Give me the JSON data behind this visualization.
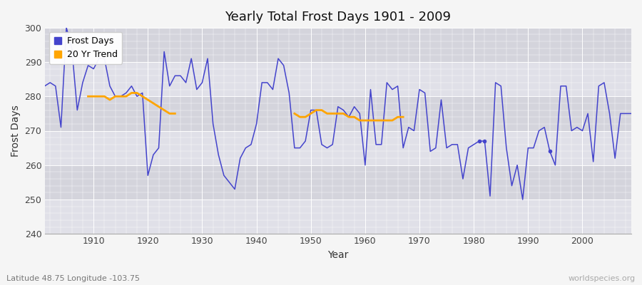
{
  "title": "Yearly Total Frost Days 1901 - 2009",
  "xlabel": "Year",
  "ylabel": "Frost Days",
  "subtitle": "Latitude 48.75 Longitude -103.75",
  "watermark": "worldspecies.org",
  "ylim": [
    240,
    300
  ],
  "xlim": [
    1901,
    2009
  ],
  "yticks": [
    240,
    250,
    260,
    270,
    280,
    290,
    300
  ],
  "xticks": [
    1910,
    1920,
    1930,
    1940,
    1950,
    1960,
    1970,
    1980,
    1990,
    2000
  ],
  "bg_color": "#f0f0f0",
  "band_colors": [
    "#e8e8e8",
    "#d8d8d8"
  ],
  "line_color": "#4444cc",
  "trend_color": "#ffa500",
  "frost_days_years": [
    1901,
    1902,
    1903,
    1904,
    1905,
    1906,
    1907,
    1908,
    1909,
    1910,
    1911,
    1912,
    1913,
    1914,
    1915,
    1916,
    1917,
    1918,
    1919,
    1920,
    1921,
    1922,
    1923,
    1924,
    1925,
    1926,
    1927,
    1928,
    1929,
    1930,
    1931,
    1932,
    1933,
    1934,
    1935,
    1936,
    1937,
    1938,
    1939,
    1940,
    1941,
    1942,
    1943,
    1944,
    1945,
    1946,
    1947,
    1948,
    1949,
    1950,
    1951,
    1952,
    1953,
    1954,
    1955,
    1956,
    1957,
    1958,
    1959,
    1960,
    1961,
    1962,
    1963,
    1964,
    1965,
    1966,
    1967,
    1968,
    1969,
    1970,
    1971,
    1972,
    1973,
    1974,
    1975,
    1976,
    1977,
    1978,
    1979,
    1980,
    1981,
    1982,
    1983,
    1984,
    1985,
    1986,
    1987,
    1988,
    1989,
    1990,
    1991,
    1992,
    1993,
    1994,
    1995,
    1996,
    1997,
    1998,
    1999,
    2000,
    2001,
    2002,
    2003,
    2004,
    2005,
    2006,
    2007,
    2008,
    2009
  ],
  "frost_days_values": [
    283,
    284,
    283,
    271,
    300,
    294,
    276,
    284,
    289,
    288,
    291,
    291,
    283,
    280,
    280,
    281,
    283,
    280,
    281,
    257,
    263,
    265,
    293,
    283,
    286,
    286,
    284,
    291,
    282,
    284,
    291,
    272,
    263,
    257,
    255,
    253,
    262,
    265,
    266,
    272,
    284,
    284,
    282,
    291,
    289,
    281,
    265,
    265,
    267,
    276,
    276,
    266,
    265,
    266,
    277,
    276,
    274,
    277,
    275,
    260,
    282,
    266,
    266,
    284,
    282,
    283,
    265,
    271,
    270,
    282,
    281,
    264,
    265,
    279,
    265,
    266,
    266,
    256,
    265,
    266,
    267,
    267,
    251,
    284,
    283,
    265,
    254,
    260,
    250,
    265,
    265,
    270,
    271,
    264,
    260,
    283,
    283,
    270,
    271,
    270,
    275,
    261,
    283,
    284,
    275,
    262,
    275,
    275,
    275
  ],
  "trend_seg1_years": [
    1909,
    1910,
    1911,
    1912,
    1913,
    1914,
    1915,
    1916,
    1917,
    1918,
    1919,
    1920,
    1921,
    1922,
    1923,
    1924,
    1925
  ],
  "trend_seg1_vals": [
    280,
    280,
    280,
    280,
    279,
    280,
    280,
    280,
    281,
    281,
    280,
    279,
    278,
    277,
    276,
    275,
    275
  ],
  "trend_seg2_years": [
    1947,
    1948,
    1949,
    1950,
    1951,
    1952,
    1953,
    1954,
    1955,
    1956,
    1957,
    1958,
    1959,
    1960,
    1961,
    1962,
    1963,
    1964,
    1965,
    1966,
    1967
  ],
  "trend_seg2_vals": [
    275,
    274,
    274,
    275,
    276,
    276,
    275,
    275,
    275,
    275,
    274,
    274,
    273,
    273,
    273,
    273,
    273,
    273,
    273,
    274,
    274
  ],
  "dot_years": [
    1981,
    1982,
    1994
  ],
  "dot_vals": [
    267,
    267,
    264
  ]
}
